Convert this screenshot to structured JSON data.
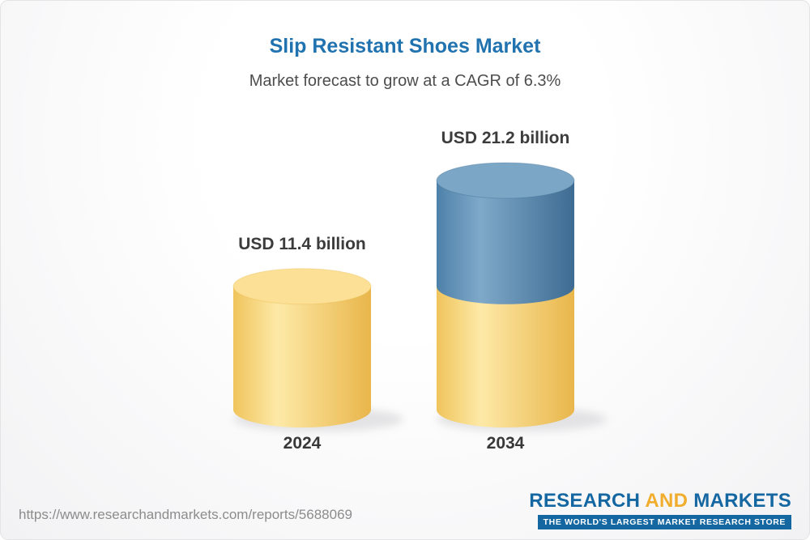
{
  "header": {
    "title": "Slip Resistant Shoes Market",
    "subtitle": "Market forecast to grow at a CAGR of 6.3%"
  },
  "chart_data": {
    "type": "bar",
    "style": "3d-cylinder",
    "title": "Slip Resistant Shoes Market",
    "subtitle": "Market forecast to grow at a CAGR of 6.3%",
    "cagr_percent": 6.3,
    "unit": "USD billion",
    "categories": [
      "2024",
      "2034"
    ],
    "totals": [
      11.4,
      21.2
    ],
    "value_labels": [
      "USD 11.4 billion",
      "USD 21.2 billion"
    ],
    "series": [
      {
        "name": "base-value-2024",
        "values": [
          11.4,
          11.4
        ],
        "gradient": [
          "#f0c45c",
          "#fde9a7",
          "#e9b64b"
        ],
        "top_color": "#fbe096"
      },
      {
        "name": "growth-to-2034",
        "values": [
          0,
          9.8
        ],
        "gradient": [
          "#4e81a9",
          "#7fa9c9",
          "#3d6b92"
        ],
        "top_color": "#7ca6c6"
      }
    ],
    "legend": "none",
    "grid": false,
    "xlabel": "",
    "ylabel": ""
  },
  "footer": {
    "url": "https://www.researchandmarkets.com/reports/5688069",
    "logo": {
      "word1": "RESEARCH",
      "word2": "AND",
      "word3": "MARKETS",
      "tagline": "THE WORLD'S LARGEST MARKET RESEARCH STORE",
      "blue": "#1567a2",
      "gold": "#f0ad2e"
    }
  },
  "colors": {
    "title": "#2173b0",
    "subtitle": "#4d4d4d",
    "label": "#3c3c3c",
    "url": "#8c8c8c",
    "background": "#f2f2f4"
  }
}
